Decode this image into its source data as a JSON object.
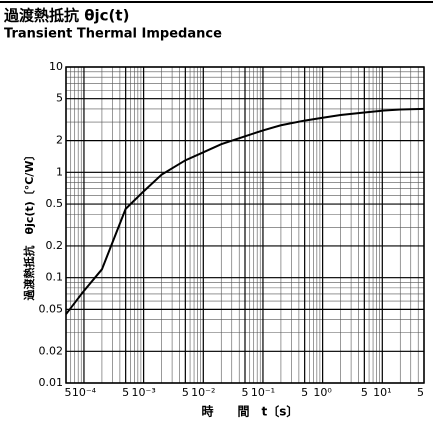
{
  "chart_data": {
    "type": "line",
    "title": "過渡熱抵抗 θjc(t)",
    "subtitle": "Transient Thermal Impedance",
    "xlabel": "時　　間　t〔s〕",
    "ylabel": "過渡熱抵抗　θjc(t)〔°C/W〕",
    "x": [
      5e-05,
      0.0001,
      0.0002,
      0.0005,
      0.001,
      0.002,
      0.005,
      0.01,
      0.02,
      0.05,
      0.1,
      0.2,
      0.5,
      1,
      2,
      5,
      10,
      20,
      50
    ],
    "series": [
      {
        "name": "θjc(t)",
        "color": "#000000",
        "values": [
          0.045,
          0.075,
          0.12,
          0.45,
          0.66,
          0.95,
          1.3,
          1.55,
          1.85,
          2.2,
          2.5,
          2.8,
          3.1,
          3.3,
          3.5,
          3.7,
          3.85,
          3.95,
          4.0
        ]
      }
    ],
    "xscale": "log",
    "yscale": "log",
    "xlim": [
      5e-05,
      50
    ],
    "ylim": [
      0.01,
      10
    ],
    "xticks": [
      {
        "value": 5e-05,
        "label": "5"
      },
      {
        "value": 0.0001,
        "label": "10⁻⁴"
      },
      {
        "value": 0.0005,
        "label": "5"
      },
      {
        "value": 0.001,
        "label": "10⁻³"
      },
      {
        "value": 0.005,
        "label": "5"
      },
      {
        "value": 0.01,
        "label": "10⁻²"
      },
      {
        "value": 0.05,
        "label": "5"
      },
      {
        "value": 0.1,
        "label": "10⁻¹"
      },
      {
        "value": 0.5,
        "label": "5"
      },
      {
        "value": 1,
        "label": "10⁰"
      },
      {
        "value": 5,
        "label": "5"
      },
      {
        "value": 10,
        "label": "10¹"
      },
      {
        "value": 50,
        "label": "5"
      }
    ],
    "yticks": [
      0.01,
      0.02,
      0.05,
      0.1,
      0.2,
      0.5,
      1,
      2,
      5,
      10
    ],
    "grid": true,
    "minor_grid": true
  }
}
